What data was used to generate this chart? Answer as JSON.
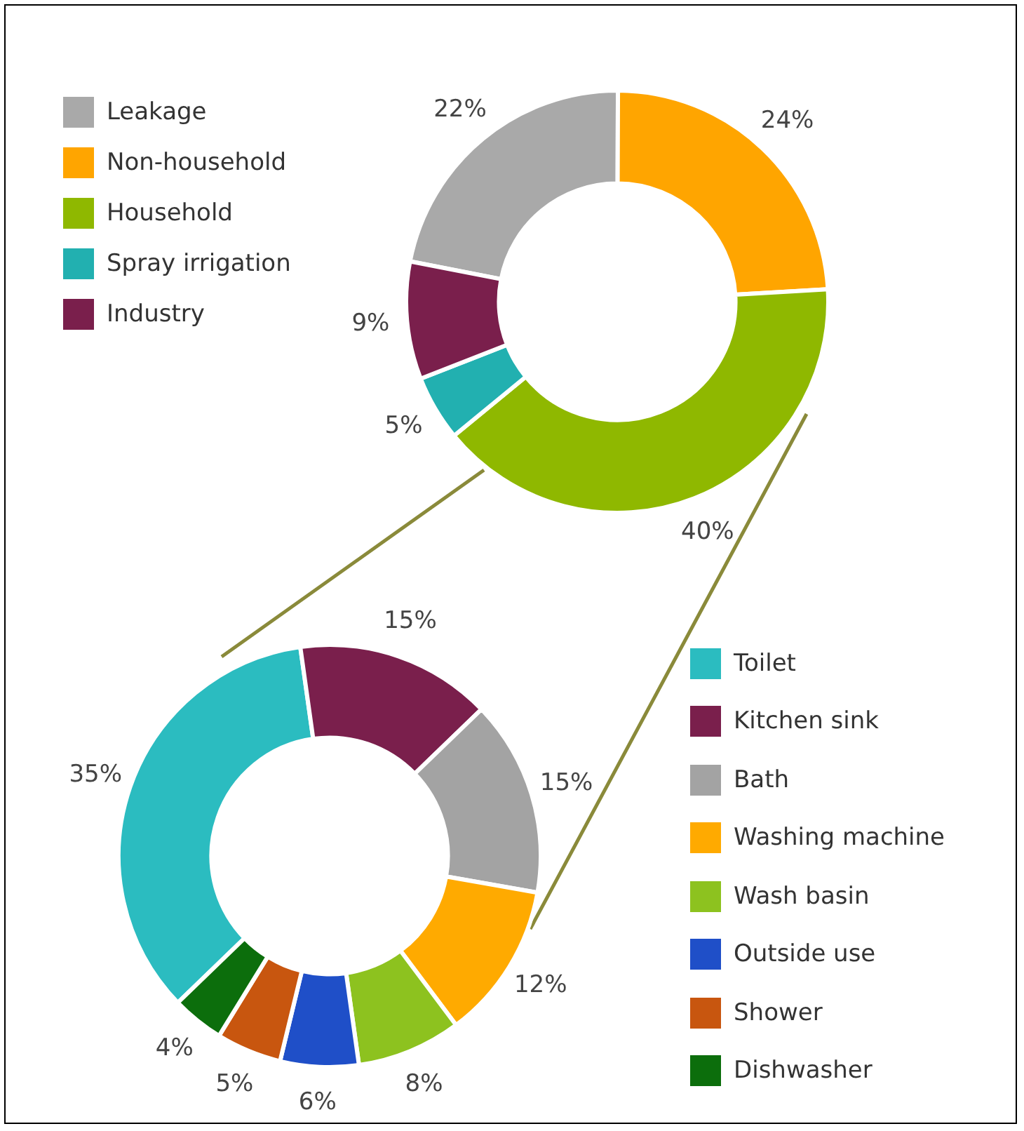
{
  "chart_data": [
    {
      "type": "donut",
      "categories": [
        "Leakage",
        "Non-household",
        "Household",
        "Spray irrigation",
        "Industry"
      ],
      "values": [
        22,
        24,
        40,
        5,
        9
      ],
      "value_labels": [
        "22%",
        "24%",
        "40%",
        "5%",
        "9%"
      ],
      "colors": [
        "#a9a9a9",
        "#ffa500",
        "#8fb800",
        "#22b0b0",
        "#7a1f4c"
      ],
      "legend": "left"
    },
    {
      "type": "donut",
      "categories": [
        "Toilet",
        "Kitchen sink",
        "Bath",
        "Washing machine",
        "Wash basin",
        "Outside use",
        "Shower",
        "Dishwasher"
      ],
      "values": [
        35,
        15,
        15,
        12,
        8,
        6,
        5,
        4
      ],
      "value_labels": [
        "35%",
        "15%",
        "15%",
        "12%",
        "8%",
        "6%",
        "5%",
        "4%"
      ],
      "colors": [
        "#2bbcc0",
        "#7a1f4c",
        "#a3a3a3",
        "#ffaa00",
        "#8dc21f",
        "#1f4fc8",
        "#c8560f",
        "#0c6e0c"
      ],
      "legend": "right"
    }
  ]
}
